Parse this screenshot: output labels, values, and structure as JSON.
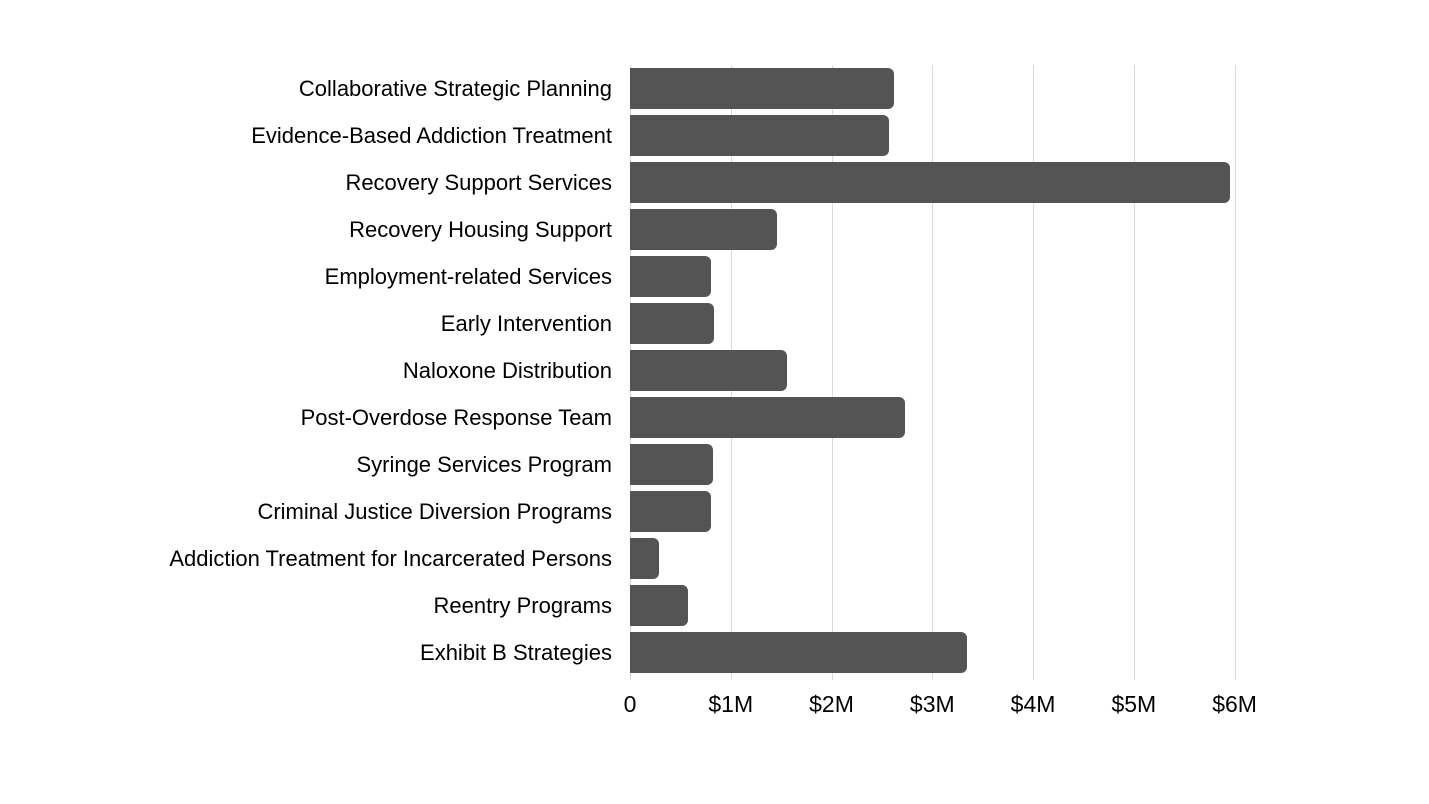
{
  "chart_data": {
    "type": "bar",
    "orientation": "horizontal",
    "title": "",
    "xlabel": "",
    "ylabel": "",
    "grid": true,
    "legend": false,
    "categories": [
      "Collaborative Strategic Planning",
      "Evidence-Based Addiction Treatment",
      "Recovery Support Services",
      "Recovery Housing Support",
      "Employment-related Services",
      "Early Intervention",
      "Naloxone Distribution",
      "Post-Overdose Response Team",
      "Syringe Services Program",
      "Criminal Justice Diversion Programs",
      "Addiction Treatment for Incarcerated Persons",
      "Reentry Programs",
      "Exhibit B Strategies"
    ],
    "values": [
      2620000,
      2570000,
      5950000,
      1460000,
      800000,
      830000,
      1560000,
      2730000,
      820000,
      800000,
      290000,
      580000,
      3340000
    ],
    "x_ticks": [
      {
        "label": "0",
        "value": 0
      },
      {
        "label": "$1M",
        "value": 1000000
      },
      {
        "label": "$2M",
        "value": 2000000
      },
      {
        "label": "$3M",
        "value": 3000000
      },
      {
        "label": "$4M",
        "value": 4000000
      },
      {
        "label": "$5M",
        "value": 5000000
      },
      {
        "label": "$6M",
        "value": 6000000
      }
    ],
    "xlim": [
      0,
      6550000
    ],
    "colors": {
      "bar": "#545454",
      "gridline": "#d9d9d9",
      "text": "#000000",
      "background": "#ffffff"
    }
  }
}
